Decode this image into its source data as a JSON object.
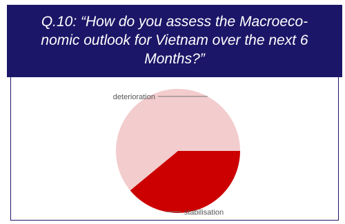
{
  "title": "Q.10: “How do you assess the Macroeco-nomic outlook for Vietnam over the next 6 Months?”",
  "title_lines": [
    "Q.10: “How do you assess the Macroeco-",
    "nomic outlook for Vietnam over the next 6",
    "Months?”"
  ],
  "colors": {
    "title_background": "#1c1668",
    "title_text": "#ffffff",
    "slice_deterioration": "#f3cccd",
    "slice_stabilisation": "#cc0000"
  },
  "chart_data": {
    "type": "pie",
    "title": "Q.10: “How do you assess the Macroeconomic outlook for Vietnam over the next 6 Months?”",
    "slices": [
      {
        "label": "deterioration",
        "value": 61,
        "color": "#f3cccd"
      },
      {
        "label": "stabilisation",
        "value": 39,
        "color": "#cc0000"
      }
    ],
    "legend": "none",
    "data_labels": "category names with leader lines"
  }
}
